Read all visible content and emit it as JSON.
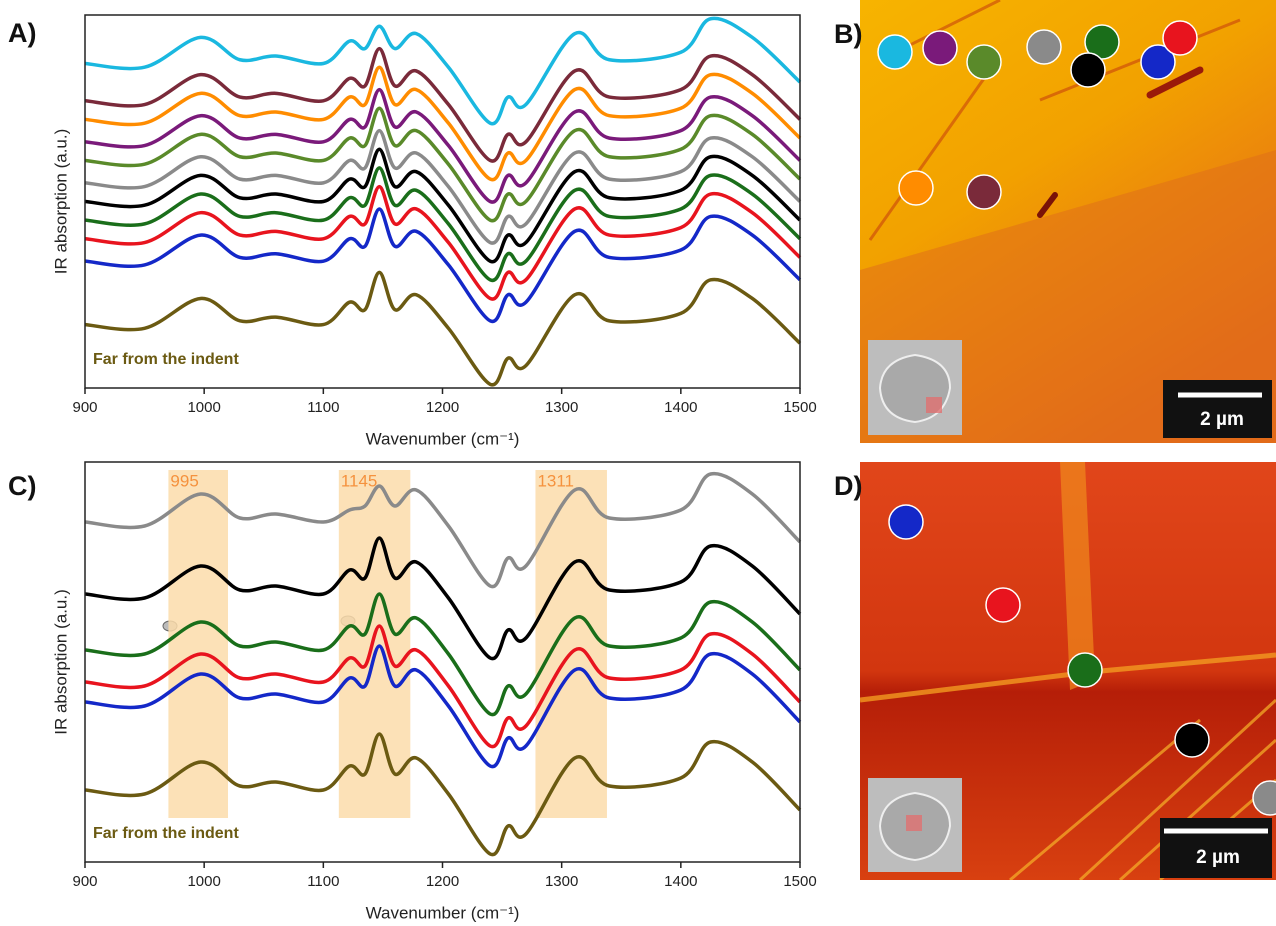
{
  "chart_data": [
    {
      "type": "line",
      "panel_label": "A)",
      "ylabel": "IR absorption (a.u.)",
      "xlabel": "Wavenumber (cm⁻¹)",
      "annotation": "Far from the indent",
      "annotation_color": "#6b5a12",
      "xlim": [
        900,
        1500
      ],
      "xticks": [
        900,
        1000,
        1100,
        1200,
        1300,
        1400,
        1500
      ],
      "ylim": [
        0,
        100
      ],
      "x": [
        900,
        950,
        997,
        1030,
        1060,
        1100,
        1122,
        1135,
        1147,
        1160,
        1178,
        1205,
        1240,
        1255,
        1270,
        1311,
        1340,
        1400,
        1425,
        1460,
        1500
      ],
      "series": [
        {
          "color": "#1ab8e0",
          "values": [
            87,
            86,
            94,
            88,
            89,
            87,
            93,
            91,
            97,
            91,
            95,
            86,
            71,
            78,
            76,
            95,
            88,
            90,
            99,
            94,
            82
          ]
        },
        {
          "color": "#7a2a3a",
          "values": [
            77,
            76,
            84,
            78,
            79,
            77,
            83,
            81,
            91,
            81,
            85,
            76,
            61,
            68,
            66,
            85,
            78,
            80,
            89,
            84,
            72
          ]
        },
        {
          "color": "#ff8c00",
          "values": [
            72,
            71,
            79,
            73,
            74,
            72,
            78,
            76,
            86,
            76,
            80,
            71,
            56,
            63,
            61,
            80,
            73,
            75,
            84,
            79,
            67
          ]
        },
        {
          "color": "#7a1a7a",
          "values": [
            66,
            65,
            73,
            67,
            68,
            66,
            72,
            70,
            80,
            70,
            74,
            65,
            50,
            57,
            55,
            74,
            67,
            69,
            78,
            73,
            61
          ]
        },
        {
          "color": "#5a8a2a",
          "values": [
            61,
            60,
            68,
            62,
            63,
            61,
            67,
            65,
            75,
            65,
            69,
            60,
            45,
            52,
            50,
            69,
            62,
            64,
            73,
            68,
            56
          ]
        },
        {
          "color": "#8a8a8a",
          "values": [
            55,
            54,
            62,
            56,
            57,
            55,
            61,
            59,
            69,
            59,
            63,
            54,
            39,
            46,
            44,
            63,
            56,
            58,
            67,
            62,
            50
          ]
        },
        {
          "color": "#000000",
          "values": [
            50,
            49,
            57,
            51,
            52,
            50,
            56,
            54,
            64,
            54,
            58,
            49,
            34,
            41,
            39,
            58,
            51,
            53,
            62,
            57,
            45
          ]
        },
        {
          "color": "#1a6e1a",
          "values": [
            45,
            44,
            52,
            46,
            47,
            45,
            51,
            49,
            59,
            49,
            53,
            44,
            29,
            36,
            34,
            53,
            46,
            48,
            57,
            52,
            40
          ]
        },
        {
          "color": "#e8141e",
          "values": [
            40,
            39,
            47,
            41,
            42,
            40,
            46,
            44,
            54,
            44,
            48,
            39,
            24,
            31,
            29,
            48,
            41,
            43,
            52,
            47,
            35
          ]
        },
        {
          "color": "#1428c8",
          "values": [
            34,
            33,
            41,
            35,
            36,
            34,
            40,
            38,
            48,
            38,
            42,
            33,
            18,
            25,
            23,
            42,
            35,
            37,
            46,
            41,
            29
          ]
        },
        {
          "color": "#6b5a12",
          "values": [
            17,
            16,
            24,
            18,
            19,
            17,
            23,
            21,
            31,
            21,
            25,
            16,
            1,
            8,
            6,
            25,
            18,
            20,
            29,
            24,
            12
          ]
        }
      ]
    },
    {
      "type": "line",
      "panel_label": "C)",
      "ylabel": "IR absorption (a.u.)",
      "xlabel": "Wavenumber (cm⁻¹)",
      "annotation": "Far from the indent",
      "annotation_color": "#6b5a12",
      "xlim": [
        900,
        1500
      ],
      "xticks": [
        900,
        1000,
        1100,
        1200,
        1300,
        1400,
        1500
      ],
      "ylim": [
        0,
        100
      ],
      "highlights": [
        {
          "label": 995,
          "range": [
            970,
            1020
          ]
        },
        {
          "label": 1145,
          "range": [
            1113,
            1173
          ]
        },
        {
          "label": 1311,
          "range": [
            1278,
            1338
          ]
        }
      ],
      "highlight_color": "#fbdcaa",
      "highlight_text_color": "#f5923e",
      "x": [
        900,
        950,
        997,
        1030,
        1060,
        1100,
        1122,
        1135,
        1147,
        1160,
        1178,
        1205,
        1240,
        1255,
        1270,
        1311,
        1340,
        1400,
        1425,
        1460,
        1500
      ],
      "series": [
        {
          "color": "#8a8a8a",
          "values": [
            85,
            84,
            92,
            86,
            87,
            85,
            88,
            89,
            94,
            89,
            93,
            84,
            69,
            76,
            74,
            93,
            86,
            88,
            97,
            92,
            80
          ]
        },
        {
          "color": "#000000",
          "values": [
            67,
            66,
            74,
            68,
            69,
            67,
            73,
            71,
            81,
            71,
            75,
            66,
            51,
            58,
            56,
            75,
            68,
            70,
            79,
            74,
            62
          ]
        },
        {
          "color": "#1a6e1a",
          "values": [
            53,
            52,
            60,
            54,
            55,
            53,
            59,
            57,
            67,
            57,
            61,
            52,
            37,
            44,
            42,
            61,
            54,
            56,
            65,
            60,
            48
          ]
        },
        {
          "color": "#e8141e",
          "values": [
            45,
            44,
            52,
            46,
            47,
            45,
            51,
            49,
            59,
            49,
            53,
            44,
            29,
            36,
            34,
            53,
            46,
            48,
            57,
            52,
            40
          ]
        },
        {
          "color": "#1428c8",
          "values": [
            40,
            39,
            47,
            41,
            42,
            40,
            46,
            44,
            54,
            44,
            48,
            39,
            24,
            31,
            29,
            48,
            41,
            43,
            52,
            47,
            35
          ]
        },
        {
          "color": "#6b5a12",
          "values": [
            18,
            17,
            25,
            19,
            20,
            18,
            24,
            22,
            32,
            22,
            26,
            17,
            2,
            9,
            7,
            26,
            19,
            21,
            30,
            25,
            13
          ]
        }
      ]
    }
  ],
  "images": [
    {
      "panel_label": "B)",
      "scale_bar": "2 µm",
      "dot_colors": [
        "#1ab8e0",
        "#7a1a7a",
        "#5a8a2a",
        "#8a8a8a",
        "#1a6e1a",
        "#000000",
        "#1428c8",
        "#e8141e",
        "#ff8c00",
        "#7a2a3a"
      ]
    },
    {
      "panel_label": "D)",
      "scale_bar": "2 µm",
      "dot_colors": [
        "#1428c8",
        "#e8141e",
        "#1a6e1a",
        "#000000",
        "#8a8a8a"
      ]
    }
  ]
}
